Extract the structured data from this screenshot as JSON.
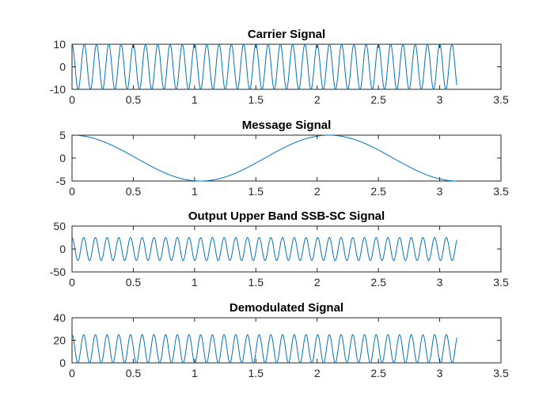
{
  "colors": {
    "line": "#0072bd",
    "axis": "#262626",
    "background": "#ffffff"
  },
  "chart_data": [
    {
      "type": "line",
      "title": "Carrier Signal",
      "xlabel": "",
      "ylabel": "",
      "xlim": [
        0,
        3.5
      ],
      "ylim": [
        -10,
        10
      ],
      "xticks": [
        0,
        0.5,
        1,
        1.5,
        2,
        2.5,
        3,
        3.5
      ],
      "xtick_labels": [
        "0",
        "0.5",
        "1",
        "1.5",
        "2",
        "2.5",
        "3",
        "3.5"
      ],
      "yticks": [
        -10,
        0,
        10
      ],
      "ytick_labels": [
        "-10",
        "0",
        "10"
      ],
      "grid": false,
      "series": [
        {
          "function": "A*cos(2*pi*f*x)",
          "A": 10,
          "f": 10,
          "x_start": 0,
          "x_end": 3.14,
          "step": 0.002
        }
      ]
    },
    {
      "type": "line",
      "title": "Message Signal",
      "xlabel": "",
      "ylabel": "",
      "xlim": [
        0,
        3.5
      ],
      "ylim": [
        -5,
        5
      ],
      "xticks": [
        0,
        0.5,
        1,
        1.5,
        2,
        2.5,
        3,
        3.5
      ],
      "xtick_labels": [
        "0",
        "0.5",
        "1",
        "1.5",
        "2",
        "2.5",
        "3",
        "3.5"
      ],
      "yticks": [
        -5,
        0,
        5
      ],
      "ytick_labels": [
        "-5",
        "0",
        "5"
      ],
      "grid": false,
      "series": [
        {
          "function": "A*cos(2*pi*f*x)",
          "A": 5,
          "f": 0.477,
          "x_start": 0,
          "x_end": 3.14,
          "step": 0.002
        }
      ]
    },
    {
      "type": "line",
      "title": "Output Upper Band SSB-SC Signal",
      "xlabel": "",
      "ylabel": "",
      "xlim": [
        0,
        3.5
      ],
      "ylim": [
        -50,
        50
      ],
      "xticks": [
        0,
        0.5,
        1,
        1.5,
        2,
        2.5,
        3,
        3.5
      ],
      "xtick_labels": [
        "0",
        "0.5",
        "1",
        "1.5",
        "2",
        "2.5",
        "3",
        "3.5"
      ],
      "yticks": [
        -50,
        0,
        50
      ],
      "ytick_labels": [
        "-50",
        "0",
        "50"
      ],
      "grid": false,
      "series": [
        {
          "function": "A*cos(2*pi*f*x)",
          "A": 25,
          "f": 10.477,
          "x_start": 0,
          "x_end": 3.14,
          "step": 0.002
        }
      ]
    },
    {
      "type": "line",
      "title": "Demodulated Signal",
      "xlabel": "",
      "ylabel": "",
      "xlim": [
        0,
        3.5
      ],
      "ylim": [
        0,
        40
      ],
      "xticks": [
        0,
        0.5,
        1,
        1.5,
        2,
        2.5,
        3,
        3.5
      ],
      "xtick_labels": [
        "0",
        "0.5",
        "1",
        "1.5",
        "2",
        "2.5",
        "3",
        "3.5"
      ],
      "yticks": [
        0,
        20,
        40
      ],
      "ytick_labels": [
        "0",
        "20",
        "40"
      ],
      "grid": false,
      "series": [
        {
          "function": "A*cos(2*pi*f*x)^2",
          "A": 25,
          "f": 5.238,
          "x_start": 0,
          "x_end": 3.14,
          "step": 0.002
        }
      ]
    }
  ]
}
